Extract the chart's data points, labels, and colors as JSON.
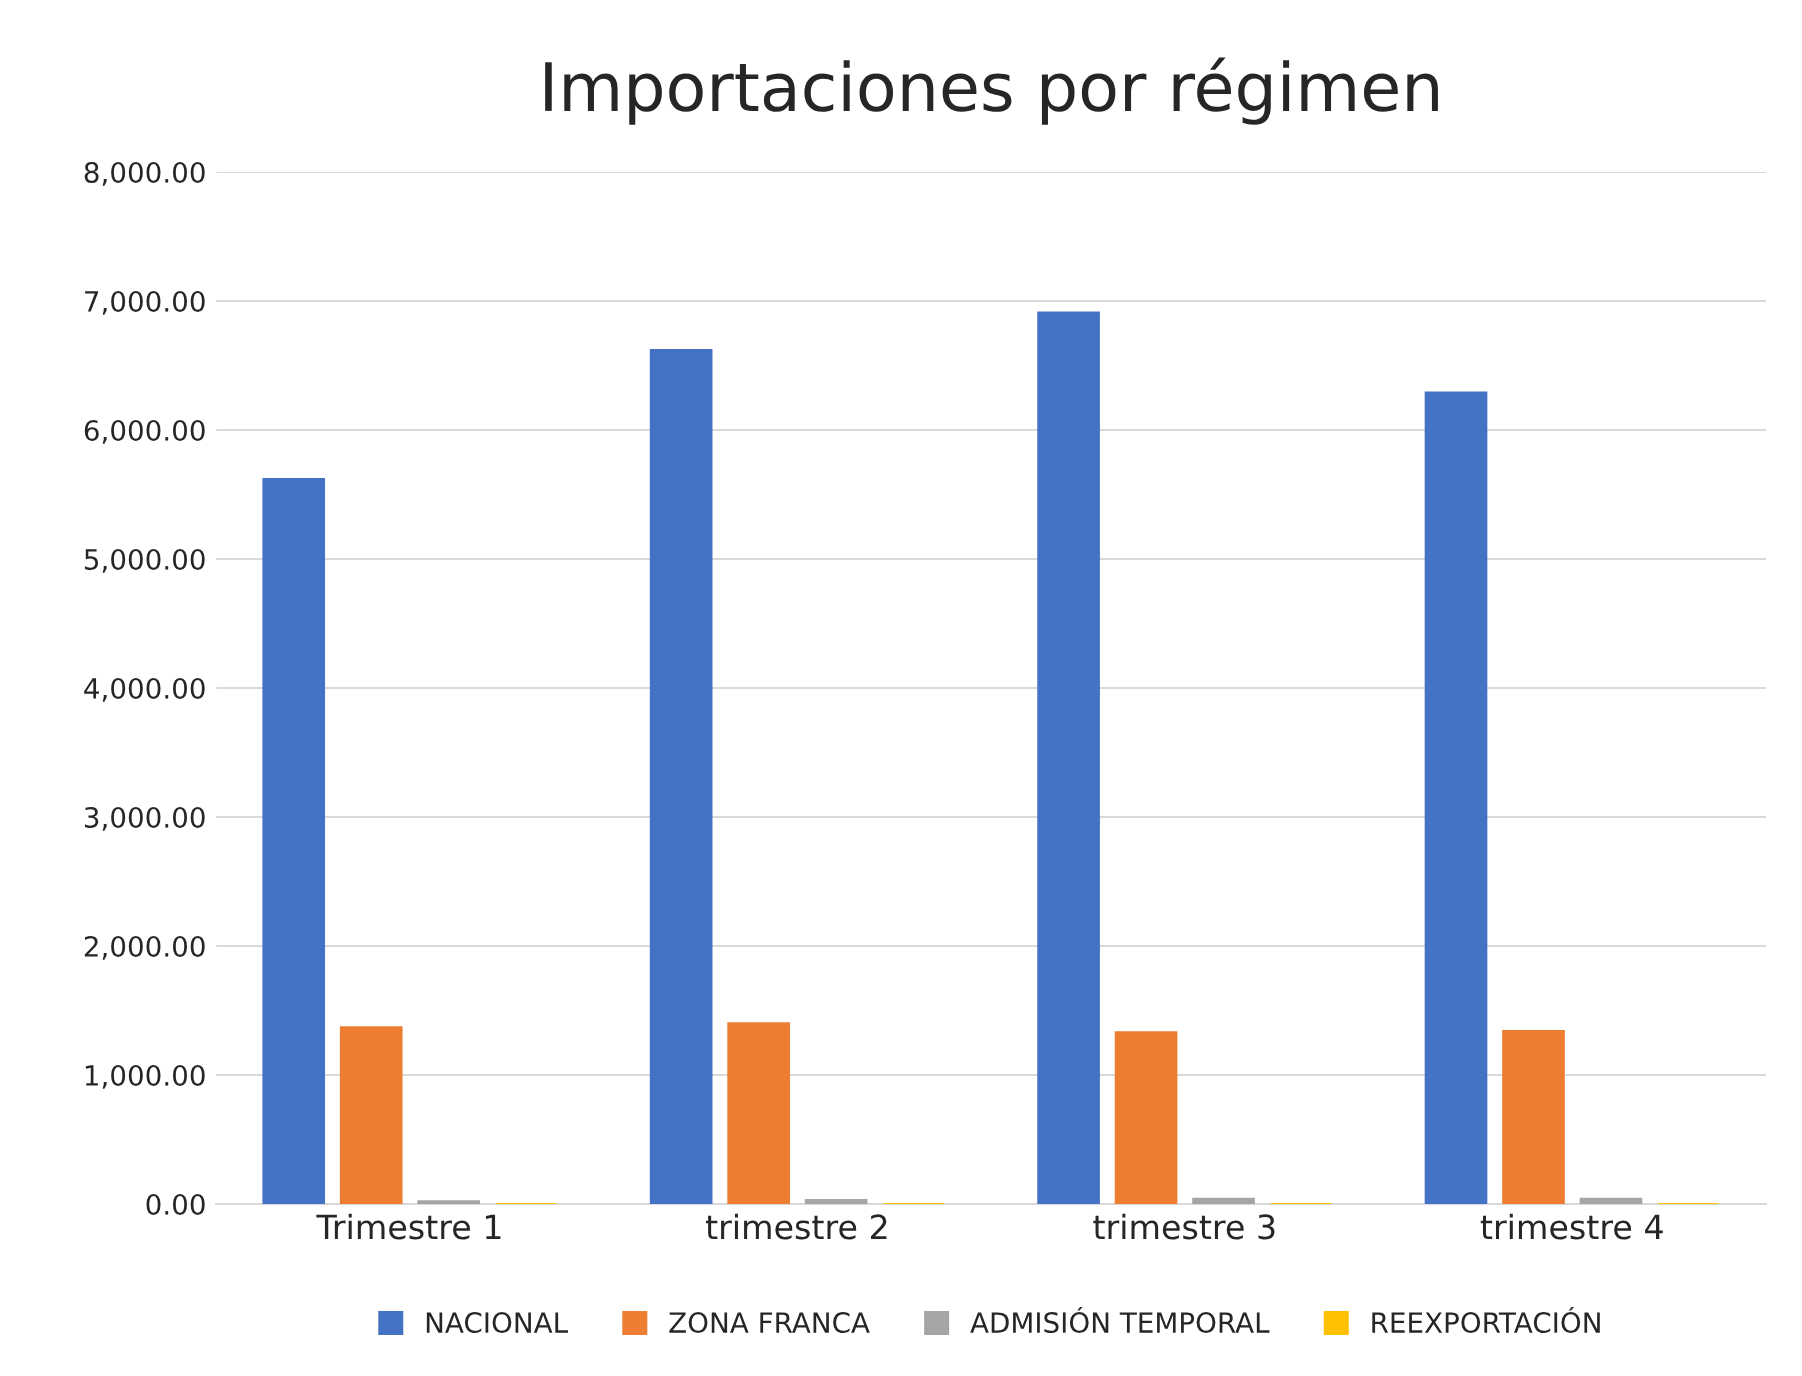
{
  "chart_data": {
    "type": "bar",
    "title": "Importaciones por régimen",
    "categories": [
      "Trimestre 1",
      "trimestre 2",
      "trimestre 3",
      "trimestre 4"
    ],
    "series": [
      {
        "name": "NACIONAL",
        "color": "#4472c4",
        "values": [
          5620,
          6620,
          6910,
          6290
        ]
      },
      {
        "name": "ZONA FRANCA",
        "color": "#ed7d31",
        "values": [
          1370,
          1400,
          1330,
          1340
        ]
      },
      {
        "name": "ADMISIÓN TEMPORAL",
        "color": "#a5a5a5",
        "values": [
          20,
          30,
          40,
          40
        ]
      },
      {
        "name": "REEXPORTACIÓN",
        "color": "#ffc000",
        "values": [
          0,
          0,
          0,
          0
        ]
      }
    ],
    "ylim": [
      0,
      8000
    ],
    "yticks": [
      {
        "value": 0,
        "label": "0.00"
      },
      {
        "value": 1000,
        "label": "1,000.00"
      },
      {
        "value": 2000,
        "label": "2,000.00"
      },
      {
        "value": 3000,
        "label": "3,000.00"
      },
      {
        "value": 4000,
        "label": "4,000.00"
      },
      {
        "value": 5000,
        "label": "5,000.00"
      },
      {
        "value": 6000,
        "label": "6,000.00"
      },
      {
        "value": 7000,
        "label": "7,000.00"
      },
      {
        "value": 8000,
        "label": "8,000.00"
      }
    ],
    "grid": "y",
    "legend": "bottom"
  }
}
